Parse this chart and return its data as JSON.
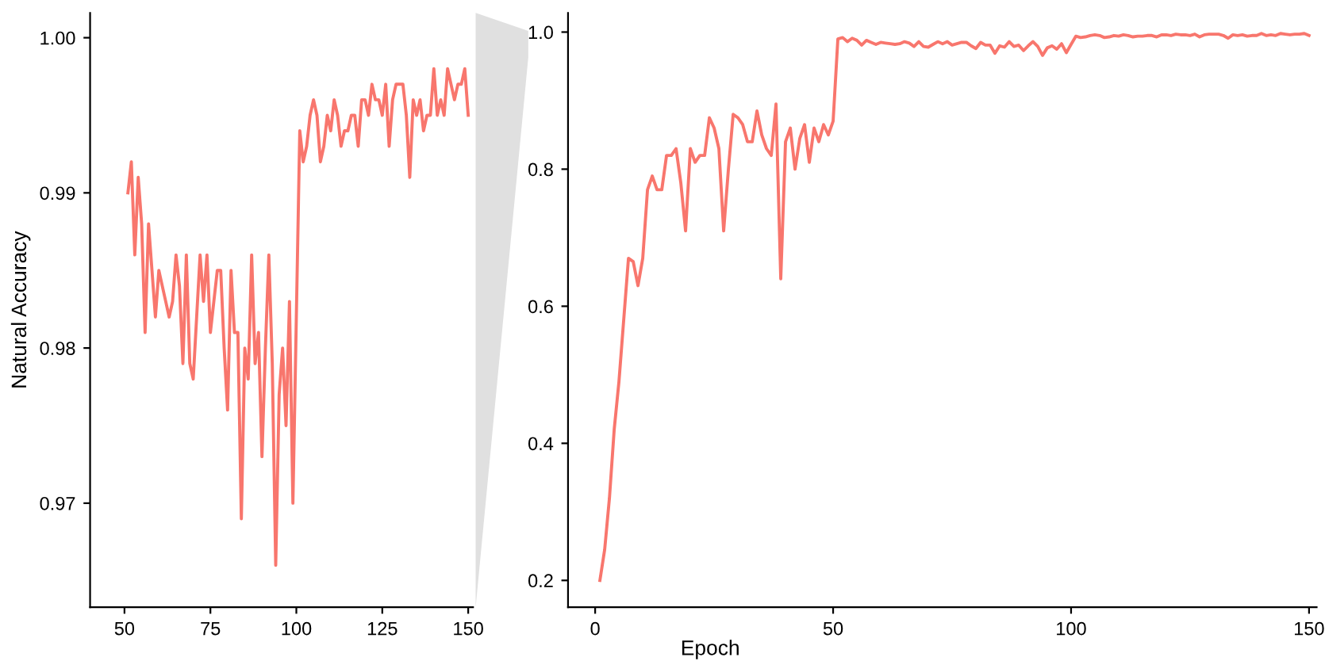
{
  "chart_data": [
    {
      "type": "line",
      "ylabel": "Natural Accuracy",
      "xlim": [
        40,
        151.4
      ],
      "ylim": [
        0.9633,
        1.0016
      ],
      "xticks": [
        50,
        75,
        100,
        125,
        150
      ],
      "yticks": [
        0.97,
        0.98,
        0.99,
        {
          "value": 1.0,
          "label": "1.00"
        }
      ],
      "grid": false,
      "x": [
        51,
        52,
        53,
        54,
        55,
        56,
        57,
        58,
        59,
        60,
        61,
        62,
        63,
        64,
        65,
        66,
        67,
        68,
        69,
        70,
        71,
        72,
        73,
        74,
        75,
        76,
        77,
        78,
        79,
        80,
        81,
        82,
        83,
        84,
        85,
        86,
        87,
        88,
        89,
        90,
        91,
        92,
        93,
        94,
        95,
        96,
        97,
        98,
        99,
        100,
        101,
        102,
        103,
        104,
        105,
        106,
        107,
        108,
        109,
        110,
        111,
        112,
        113,
        114,
        115,
        116,
        117,
        118,
        119,
        120,
        121,
        122,
        123,
        124,
        125,
        126,
        127,
        128,
        129,
        130,
        131,
        132,
        133,
        134,
        135,
        136,
        137,
        138,
        139,
        140,
        141,
        142,
        143,
        144,
        145,
        146,
        147,
        148,
        149,
        150
      ],
      "series": [
        {
          "color": "#f8766d",
          "values": [
            0.99,
            0.992,
            0.986,
            0.991,
            0.988,
            0.981,
            0.988,
            0.985,
            0.982,
            0.985,
            0.984,
            0.983,
            0.982,
            0.983,
            0.986,
            0.984,
            0.979,
            0.986,
            0.979,
            0.978,
            0.982,
            0.986,
            0.983,
            0.986,
            0.981,
            0.983,
            0.985,
            0.985,
            0.98,
            0.976,
            0.985,
            0.981,
            0.981,
            0.969,
            0.98,
            0.978,
            0.986,
            0.979,
            0.981,
            0.973,
            0.98,
            0.986,
            0.979,
            0.966,
            0.977,
            0.98,
            0.975,
            0.983,
            0.97,
            0.982,
            0.994,
            0.992,
            0.993,
            0.995,
            0.996,
            0.995,
            0.992,
            0.993,
            0.995,
            0.994,
            0.996,
            0.995,
            0.993,
            0.994,
            0.994,
            0.995,
            0.995,
            0.993,
            0.996,
            0.996,
            0.995,
            0.997,
            0.996,
            0.996,
            0.995,
            0.997,
            0.993,
            0.996,
            0.997,
            0.997,
            0.997,
            0.995,
            0.991,
            0.996,
            0.995,
            0.996,
            0.994,
            0.995,
            0.995,
            0.998,
            0.995,
            0.996,
            0.995,
            0.998,
            0.997,
            0.996,
            0.997,
            0.997,
            0.998,
            0.995
          ]
        }
      ]
    },
    {
      "type": "line",
      "xlabel": "Epoch",
      "xlim": [
        -5.7,
        151.6
      ],
      "ylim": [
        0.161,
        1.028
      ],
      "xticks": [
        0,
        50,
        100,
        150
      ],
      "yticks": [
        0.2,
        0.4,
        0.6,
        0.8,
        {
          "value": 1.0,
          "label": "1.0"
        }
      ],
      "grid": false,
      "x": [
        1,
        2,
        3,
        4,
        5,
        6,
        7,
        8,
        9,
        10,
        11,
        12,
        13,
        14,
        15,
        16,
        17,
        18,
        19,
        20,
        21,
        22,
        23,
        24,
        25,
        26,
        27,
        28,
        29,
        30,
        31,
        32,
        33,
        34,
        35,
        36,
        37,
        38,
        39,
        40,
        41,
        42,
        43,
        44,
        45,
        46,
        47,
        48,
        49,
        50,
        51,
        52,
        53,
        54,
        55,
        56,
        57,
        58,
        59,
        60,
        61,
        62,
        63,
        64,
        65,
        66,
        67,
        68,
        69,
        70,
        71,
        72,
        73,
        74,
        75,
        76,
        77,
        78,
        79,
        80,
        81,
        82,
        83,
        84,
        85,
        86,
        87,
        88,
        89,
        90,
        91,
        92,
        93,
        94,
        95,
        96,
        97,
        98,
        99,
        100,
        101,
        102,
        103,
        104,
        105,
        106,
        107,
        108,
        109,
        110,
        111,
        112,
        113,
        114,
        115,
        116,
        117,
        118,
        119,
        120,
        121,
        122,
        123,
        124,
        125,
        126,
        127,
        128,
        129,
        130,
        131,
        132,
        133,
        134,
        135,
        136,
        137,
        138,
        139,
        140,
        141,
        142,
        143,
        144,
        145,
        146,
        147,
        148,
        149,
        150
      ],
      "series": [
        {
          "color": "#f8766d",
          "values": [
            0.2,
            0.245,
            0.32,
            0.42,
            0.49,
            0.58,
            0.67,
            0.665,
            0.63,
            0.67,
            0.77,
            0.79,
            0.77,
            0.77,
            0.82,
            0.82,
            0.83,
            0.78,
            0.71,
            0.83,
            0.81,
            0.82,
            0.82,
            0.875,
            0.86,
            0.83,
            0.71,
            0.8,
            0.88,
            0.875,
            0.865,
            0.84,
            0.84,
            0.885,
            0.85,
            0.83,
            0.82,
            0.895,
            0.64,
            0.84,
            0.86,
            0.8,
            0.845,
            0.865,
            0.81,
            0.86,
            0.84,
            0.865,
            0.85,
            0.87,
            0.99,
            0.992,
            0.986,
            0.991,
            0.988,
            0.981,
            0.988,
            0.985,
            0.982,
            0.985,
            0.984,
            0.983,
            0.982,
            0.983,
            0.986,
            0.984,
            0.979,
            0.986,
            0.979,
            0.978,
            0.982,
            0.986,
            0.983,
            0.986,
            0.981,
            0.983,
            0.985,
            0.985,
            0.98,
            0.976,
            0.985,
            0.981,
            0.981,
            0.969,
            0.98,
            0.978,
            0.986,
            0.979,
            0.981,
            0.973,
            0.98,
            0.986,
            0.979,
            0.966,
            0.977,
            0.98,
            0.975,
            0.983,
            0.97,
            0.982,
            0.994,
            0.992,
            0.993,
            0.995,
            0.996,
            0.995,
            0.992,
            0.993,
            0.995,
            0.994,
            0.996,
            0.995,
            0.993,
            0.994,
            0.994,
            0.995,
            0.995,
            0.993,
            0.996,
            0.996,
            0.995,
            0.997,
            0.996,
            0.996,
            0.995,
            0.997,
            0.993,
            0.996,
            0.997,
            0.997,
            0.997,
            0.995,
            0.991,
            0.996,
            0.995,
            0.996,
            0.994,
            0.995,
            0.995,
            0.998,
            0.995,
            0.996,
            0.995,
            0.998,
            0.997,
            0.996,
            0.997,
            0.997,
            0.998,
            0.995
          ]
        }
      ]
    }
  ]
}
